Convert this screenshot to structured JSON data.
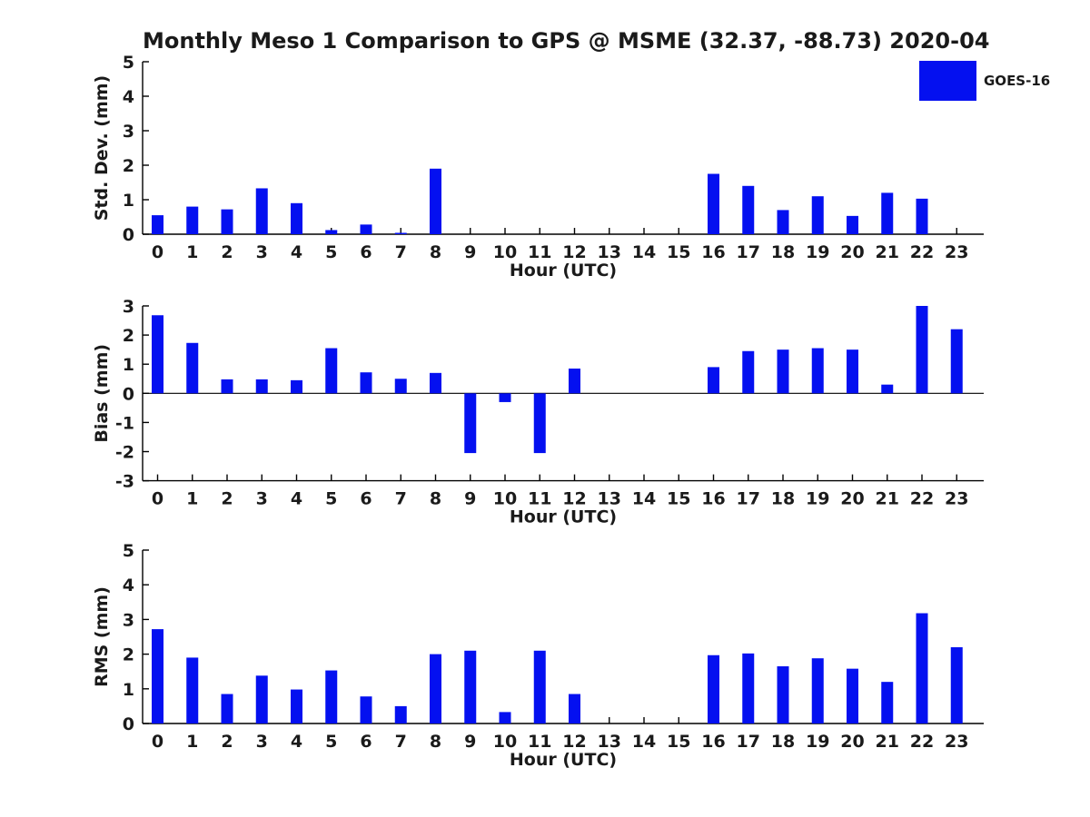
{
  "title": "Monthly Meso 1 Comparison to GPS @ MSME (32.37, -88.73) 2020-04",
  "legend": {
    "label": "GOES-16",
    "position": "top-right"
  },
  "colors": {
    "bar": "#0410f0",
    "text": "#1a1a1a",
    "axis": "#000000",
    "background": "#ffffff"
  },
  "chart_data": [
    {
      "type": "bar",
      "panel": "top",
      "series_name": "GOES-16",
      "ylabel": "Std. Dev. (mm)",
      "xlabel": "Hour (UTC)",
      "categories": [
        0,
        1,
        2,
        3,
        4,
        5,
        6,
        7,
        8,
        9,
        10,
        11,
        12,
        13,
        14,
        15,
        16,
        17,
        18,
        19,
        20,
        21,
        22,
        23
      ],
      "values": [
        0.55,
        0.8,
        0.72,
        1.33,
        0.9,
        0.12,
        0.28,
        0.04,
        1.9,
        0,
        0,
        0,
        0,
        0,
        0,
        0,
        1.75,
        1.4,
        0.7,
        1.1,
        0.53,
        1.2,
        1.03,
        0
      ],
      "ylim": [
        0,
        5
      ],
      "yticks": [
        0,
        1,
        2,
        3,
        4,
        5
      ],
      "grid": false
    },
    {
      "type": "bar",
      "panel": "middle",
      "series_name": "GOES-16",
      "ylabel": "Bias (mm)",
      "xlabel": "Hour (UTC)",
      "categories": [
        0,
        1,
        2,
        3,
        4,
        5,
        6,
        7,
        8,
        9,
        10,
        11,
        12,
        13,
        14,
        15,
        16,
        17,
        18,
        19,
        20,
        21,
        22,
        23
      ],
      "values": [
        2.68,
        1.73,
        0.48,
        0.48,
        0.45,
        1.55,
        0.72,
        0.5,
        0.7,
        -2.05,
        -0.3,
        -2.05,
        0.85,
        0,
        0,
        0,
        0.9,
        1.45,
        1.5,
        1.55,
        1.5,
        0.3,
        3.0,
        2.2
      ],
      "ylim": [
        -3,
        3
      ],
      "yticks": [
        -3,
        -2,
        -1,
        0,
        1,
        2,
        3
      ],
      "grid": false
    },
    {
      "type": "bar",
      "panel": "bottom",
      "series_name": "GOES-16",
      "ylabel": "RMS (mm)",
      "xlabel": "Hour (UTC)",
      "categories": [
        0,
        1,
        2,
        3,
        4,
        5,
        6,
        7,
        8,
        9,
        10,
        11,
        12,
        13,
        14,
        15,
        16,
        17,
        18,
        19,
        20,
        21,
        22,
        23
      ],
      "values": [
        2.72,
        1.9,
        0.85,
        1.38,
        0.98,
        1.53,
        0.78,
        0.5,
        2.0,
        2.1,
        0.33,
        2.1,
        0.85,
        0,
        0,
        0,
        1.97,
        2.02,
        1.65,
        1.88,
        1.58,
        1.2,
        3.18,
        2.2
      ],
      "ylim": [
        0,
        5
      ],
      "yticks": [
        0,
        1,
        2,
        3,
        4,
        5
      ],
      "grid": false
    }
  ]
}
